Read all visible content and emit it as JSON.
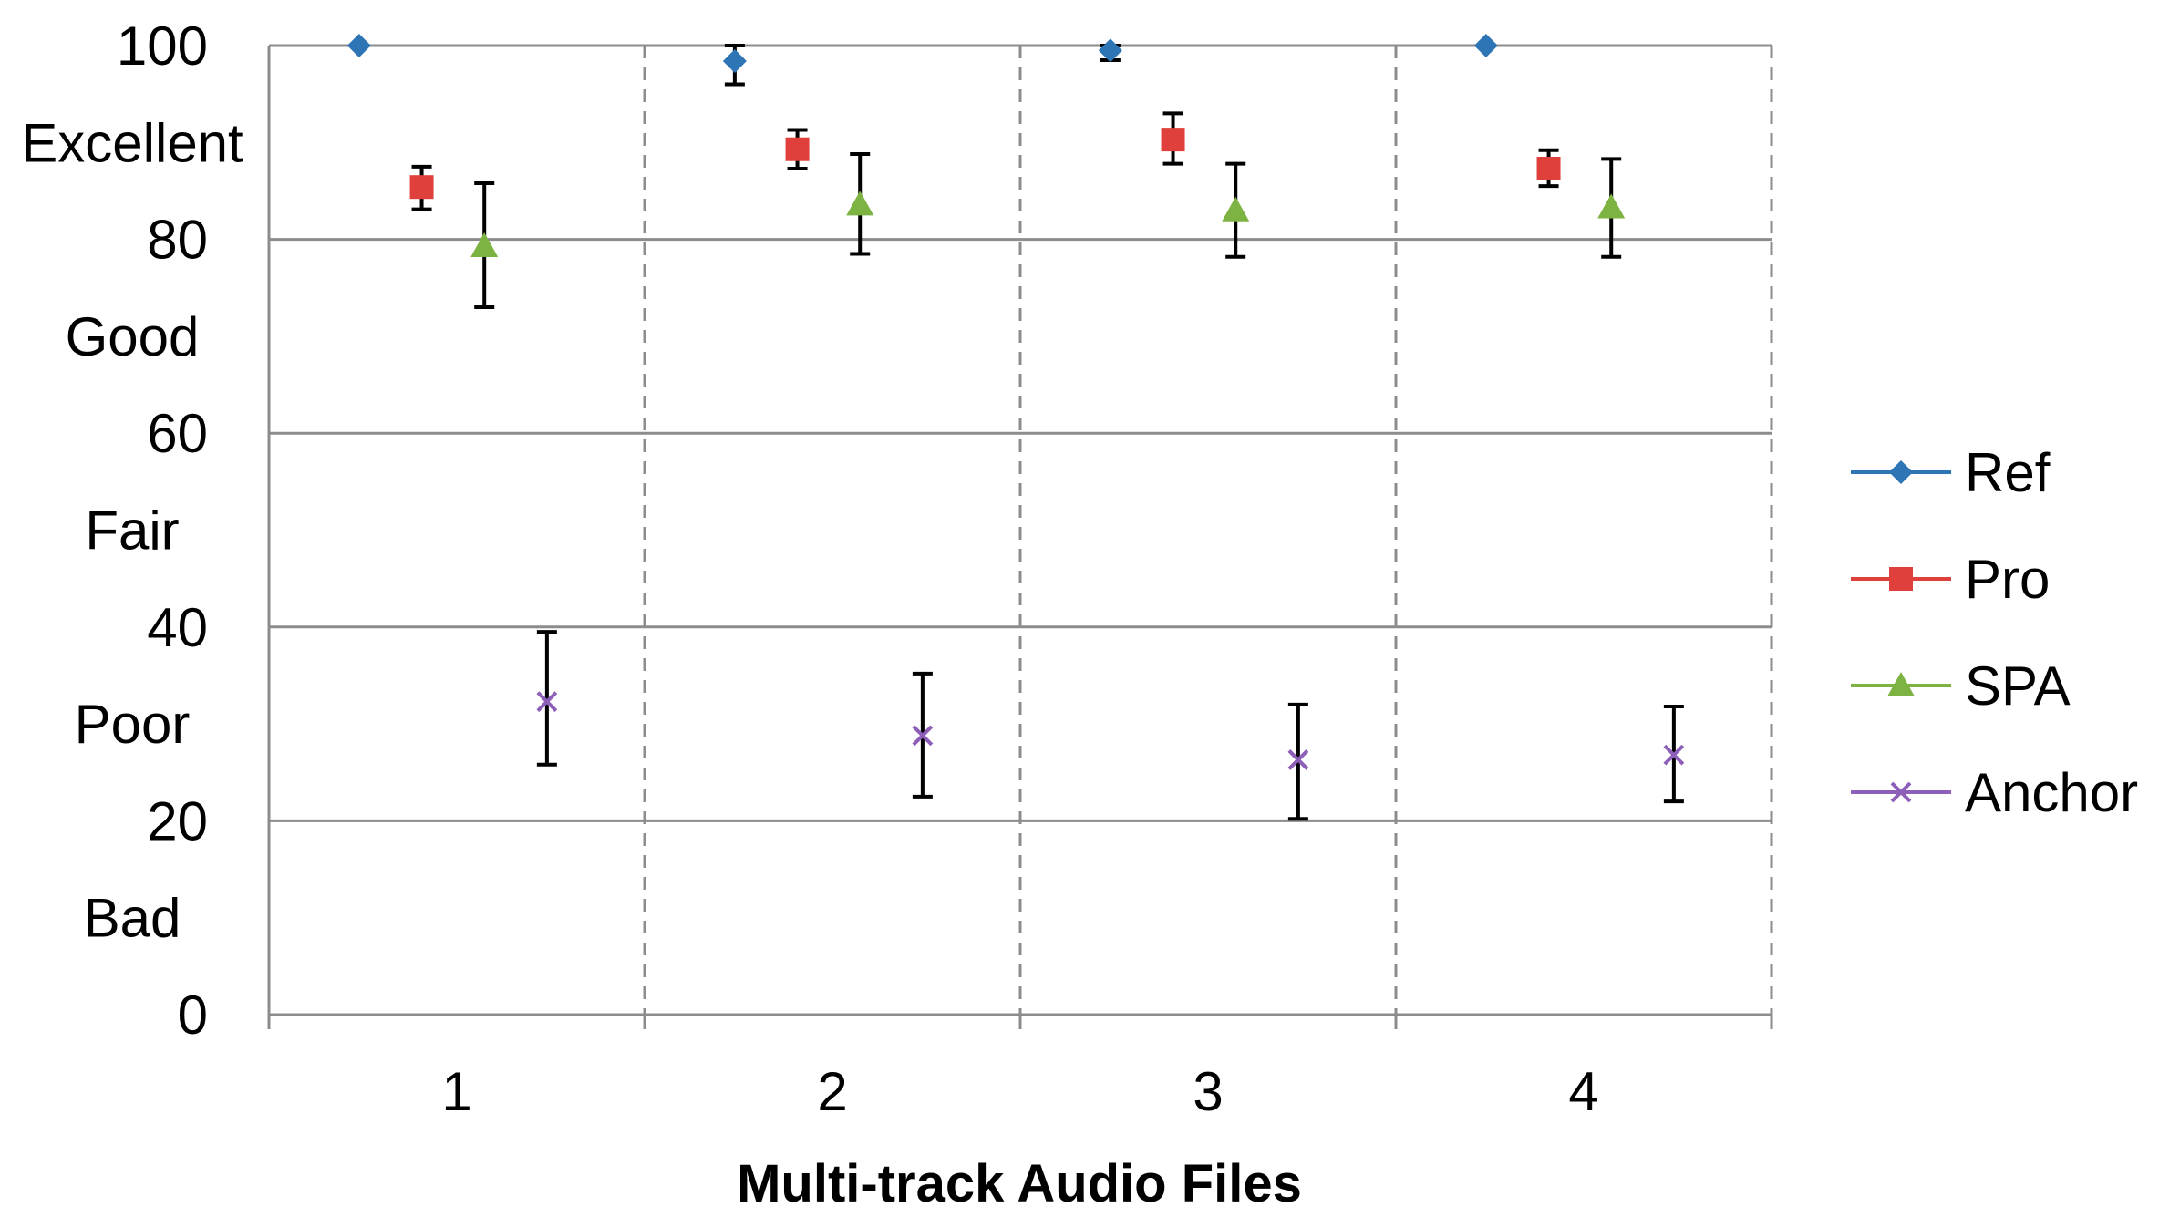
{
  "chart_data": {
    "type": "scatter",
    "title": "",
    "xlabel": "Multi-track Audio Files",
    "ylabel": "",
    "categories": [
      "1",
      "2",
      "3",
      "4"
    ],
    "ylim": [
      0,
      100
    ],
    "yticks": [
      0,
      20,
      40,
      60,
      80,
      100
    ],
    "y_ticklabels": [
      "0",
      "20",
      "40",
      "60",
      "80",
      "100"
    ],
    "quality_bands": [
      {
        "label": "Excellent",
        "range": [
          80,
          100
        ]
      },
      {
        "label": "Good",
        "range": [
          60,
          80
        ]
      },
      {
        "label": "Fair",
        "range": [
          40,
          60
        ]
      },
      {
        "label": "Poor",
        "range": [
          20,
          40
        ]
      },
      {
        "label": "Bad",
        "range": [
          0,
          20
        ]
      }
    ],
    "grid": true,
    "legend_position": "right",
    "series": [
      {
        "name": "Ref",
        "marker": "diamond",
        "color": "#2e75b6",
        "values": [
          100,
          98.4,
          99.5,
          100
        ],
        "err_low": [
          100,
          96.0,
          98.5,
          100
        ],
        "err_high": [
          100,
          100,
          100,
          100
        ]
      },
      {
        "name": "Pro",
        "marker": "square",
        "color": "#e0403c",
        "values": [
          85.4,
          89.3,
          90.3,
          87.3
        ],
        "err_low": [
          83.1,
          87.3,
          87.8,
          85.5
        ],
        "err_high": [
          87.5,
          91.3,
          93.0,
          89.2
        ]
      },
      {
        "name": "SPA",
        "marker": "triangle",
        "color": "#7cb342",
        "values": [
          79.3,
          83.6,
          83.0,
          83.3
        ],
        "err_low": [
          73.0,
          78.5,
          78.2,
          78.2
        ],
        "err_high": [
          85.8,
          88.8,
          87.8,
          88.3
        ]
      },
      {
        "name": "Anchor",
        "marker": "x",
        "color": "#8e5fb8",
        "values": [
          32.3,
          28.8,
          26.3,
          26.8
        ],
        "err_low": [
          25.8,
          22.5,
          20.2,
          22.0
        ],
        "err_high": [
          39.5,
          35.2,
          32.0,
          31.8
        ]
      }
    ]
  }
}
